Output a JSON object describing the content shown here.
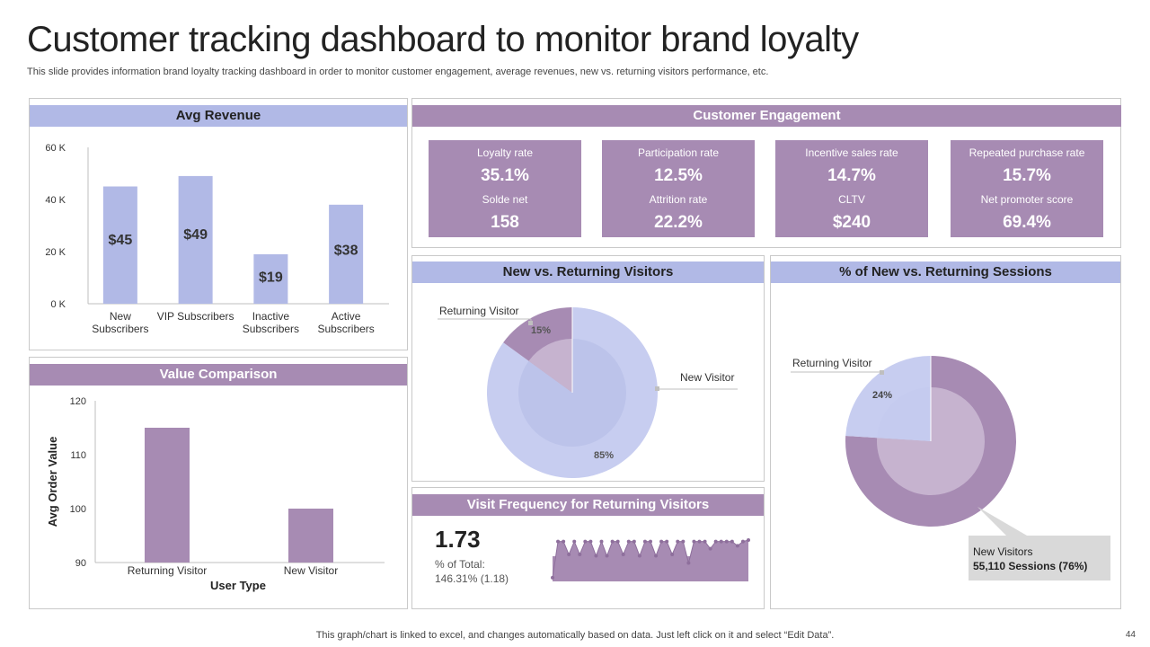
{
  "title": "Customer tracking dashboard to monitor brand loyalty",
  "subtitle": "This slide provides information brand loyalty tracking dashboard in order to monitor customer engagement, average revenues, new vs. returning visitors performance, etc.",
  "footer": "This graph/chart is linked to excel,  and changes automatically based on data. Just left click on it and select “Edit Data”.",
  "page_number": "44",
  "colors": {
    "blue": "#b1b9e6",
    "purple": "#a78bb3",
    "light_purple": "#c6b3cf",
    "light_blue": "#c7cdf0"
  },
  "avg_revenue": {
    "header": "Avg Revenue"
  },
  "value_comparison": {
    "header": "Value Comparison"
  },
  "customer_engagement": {
    "header": "Customer Engagement",
    "kpis": [
      {
        "label1": "Loyalty rate",
        "value1": "35.1%",
        "label2": "Solde net",
        "value2": "158"
      },
      {
        "label1": "Participation rate",
        "value1": "12.5%",
        "label2": "Attrition rate",
        "value2": "22.2%"
      },
      {
        "label1": "Incentive  sales rate",
        "value1": "14.7%",
        "label2": "CLTV",
        "value2": "$240"
      },
      {
        "label1": "Repeated purchase rate",
        "value1": "15.7%",
        "label2": "Net promoter score",
        "value2": "69.4%"
      }
    ]
  },
  "new_vs_returning": {
    "header": "New vs. Returning Visitors"
  },
  "sessions": {
    "header": "% of New vs. Returning Sessions",
    "callout_line1": "New Visitors",
    "callout_line2": "55,110  Sessions  (76%)"
  },
  "visit_frequency": {
    "header": "Visit Frequency for Returning Visitors",
    "big_value": "1.73",
    "sub_line1": "% of Total:",
    "sub_line2": "146.31% (1.18)"
  },
  "chart_data": [
    {
      "type": "bar",
      "title": "Avg Revenue",
      "categories": [
        "New\nSubscribers",
        "VIP Subscribers",
        "Inactive\nSubscribers",
        "Active\nSubscribers"
      ],
      "values": [
        45,
        49,
        19,
        38
      ],
      "data_labels": [
        "$45",
        "$49",
        "$19",
        "$38"
      ],
      "yticks": [
        "0 K",
        "20 K",
        "40 K",
        "60 K"
      ],
      "ylim": [
        0,
        60
      ]
    },
    {
      "type": "bar",
      "title": "Value Comparison",
      "categories": [
        "Returning Visitor",
        "New Visitor"
      ],
      "values": [
        115,
        100
      ],
      "xlabel": "User Type",
      "ylabel": "Avg Order Value",
      "yticks": [
        "90",
        "100",
        "110",
        "120"
      ],
      "ylim": [
        90,
        120
      ]
    },
    {
      "type": "pie",
      "title": "New vs. Returning Visitors",
      "labels": [
        "Returning Visitor",
        "New Visitor"
      ],
      "values": [
        15,
        85
      ],
      "data_labels": [
        "15%",
        "85%"
      ]
    },
    {
      "type": "pie",
      "title": "% of New vs. Returning Sessions",
      "labels": [
        "Returning Visitor",
        "New Visitors"
      ],
      "values": [
        24,
        76
      ],
      "data_labels": [
        "24%",
        "76%"
      ]
    },
    {
      "type": "area",
      "title": "Visit Frequency for Returning Visitors",
      "values": [
        0.0,
        0.95,
        0.95,
        0.5,
        0.95,
        0.5,
        0.95,
        0.95,
        0.45,
        0.95,
        0.45,
        0.95,
        0.95,
        0.5,
        0.95,
        0.95,
        0.45,
        0.95,
        0.95,
        0.45,
        0.95,
        0.95,
        0.5,
        0.95,
        0.95,
        0.2,
        0.95,
        0.95,
        0.95,
        0.7,
        0.95,
        0.95,
        0.95,
        0.95,
        0.8,
        0.95,
        1.0
      ]
    }
  ]
}
